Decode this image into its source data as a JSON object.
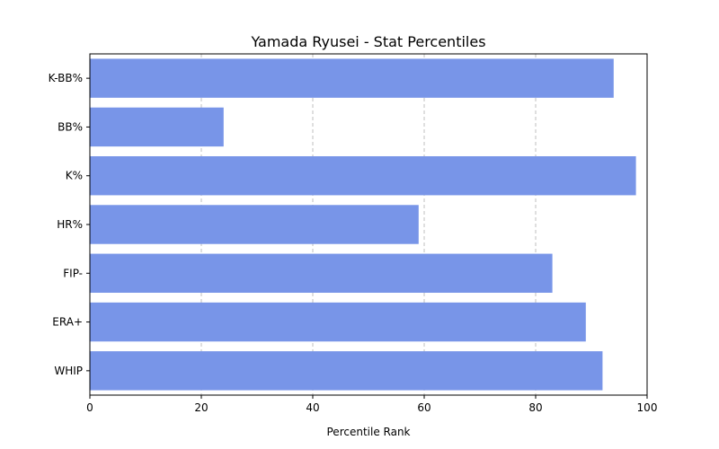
{
  "chart_data": {
    "type": "bar",
    "orientation": "horizontal",
    "title": "Yamada Ryusei - Stat Percentiles",
    "xlabel": "Percentile Rank",
    "ylabel": "",
    "categories": [
      "K-BB%",
      "BB%",
      "K%",
      "HR%",
      "FIP-",
      "ERA+",
      "WHIP"
    ],
    "values": [
      94,
      24,
      98,
      59,
      83,
      89,
      92
    ],
    "xlim": [
      0,
      100
    ],
    "xticks": [
      0,
      20,
      40,
      60,
      80,
      100
    ],
    "grid": "x-dashed",
    "bar_color": "#7895e8"
  }
}
